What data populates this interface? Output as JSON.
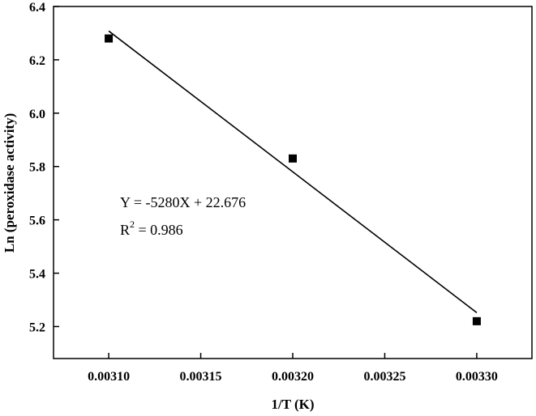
{
  "chart_data": {
    "type": "scatter",
    "xlabel": "1/T (K)",
    "ylabel": "Ln (peroxidase activity)",
    "xlim": [
      0.00307,
      0.00333
    ],
    "ylim": [
      5.08,
      6.4
    ],
    "x_ticks": [
      "0.00310",
      "0.00315",
      "0.00320",
      "0.00325",
      "0.00330"
    ],
    "y_ticks": [
      "5.2",
      "5.4",
      "5.6",
      "5.8",
      "6.0",
      "6.2",
      "6.4"
    ],
    "points": [
      {
        "x": 0.0031,
        "y": 6.28
      },
      {
        "x": 0.0032,
        "y": 5.83
      },
      {
        "x": 0.0033,
        "y": 5.22
      }
    ],
    "fit_line": {
      "slope": -5280,
      "intercept": 22.676,
      "x_start": 0.0031,
      "x_end": 0.0033
    },
    "annotation": {
      "equation": "Y = -5280X + 22.676",
      "r2_prefix": "R",
      "r2_exp": "2",
      "r2_value": " = 0.986"
    },
    "marker": "filled-square",
    "grid": false,
    "legend": "none",
    "colors": {
      "foreground": "#000000",
      "background": "#ffffff"
    }
  }
}
